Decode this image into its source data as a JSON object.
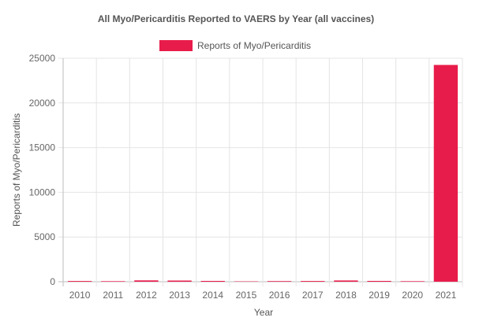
{
  "chart_data": {
    "type": "bar",
    "title": "All Myo/Pericarditis Reported to VAERS by Year (all vaccines)",
    "xlabel": "Year",
    "ylabel": "Reports of Myo/Pericarditis",
    "categories": [
      "2010",
      "2011",
      "2012",
      "2013",
      "2014",
      "2015",
      "2016",
      "2017",
      "2018",
      "2019",
      "2020",
      "2021"
    ],
    "series": [
      {
        "name": "Reports of Myo/Pericarditis",
        "color": "#e81c4a",
        "values": [
          80,
          60,
          150,
          130,
          90,
          40,
          70,
          80,
          140,
          90,
          60,
          24250
        ]
      }
    ],
    "ylim": [
      0,
      25000
    ],
    "yticks": [
      "0",
      "5000",
      "10000",
      "15000",
      "20000",
      "25000"
    ],
    "grid": true,
    "legend_position": "top-center"
  }
}
